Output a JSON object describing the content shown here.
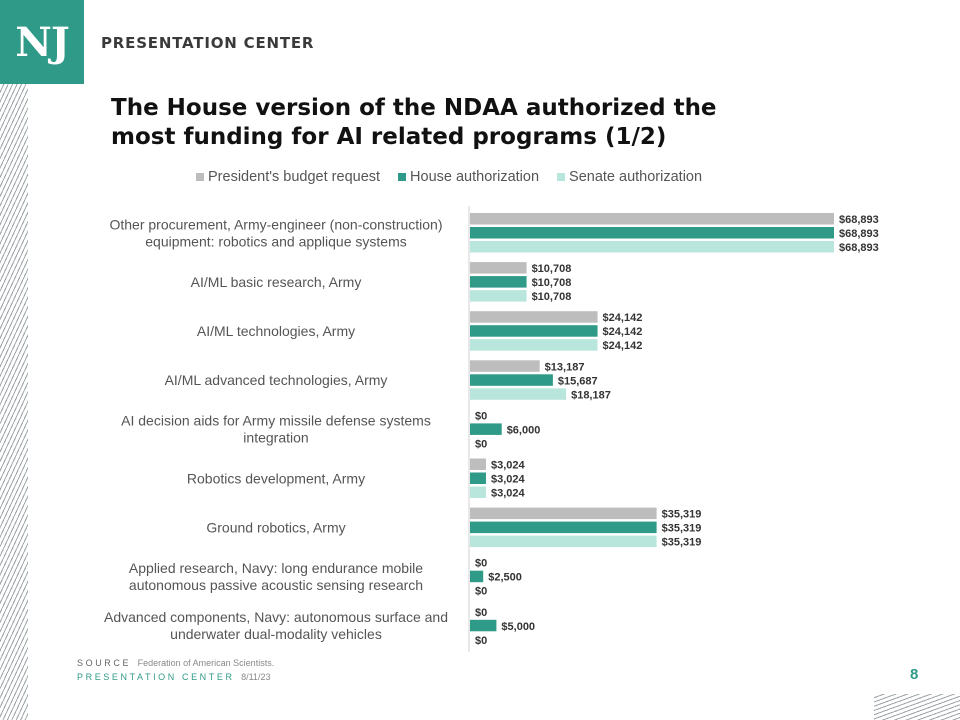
{
  "header": {
    "logo_text": "NJ",
    "brand": "PRESENTATION CENTER"
  },
  "title_line1": "The House version of the NDAA authorized the",
  "title_line2": "most funding for AI related programs (1/2)",
  "colors": {
    "accent": "#2f9a88",
    "president": "#bdbdbd",
    "house": "#2f9a88",
    "senate": "#b9e6dc"
  },
  "chart_data": {
    "type": "bar",
    "orientation": "horizontal",
    "title": "",
    "xlabel": "",
    "ylabel": "",
    "legend_position": "top",
    "grid": false,
    "xlim": [
      0,
      68893
    ],
    "categories": [
      [
        "Other procurement, Army-engineer (non-construction)",
        "equipment: robotics and applique systems"
      ],
      [
        "AI/ML basic research, Army"
      ],
      [
        "AI/ML technologies, Army"
      ],
      [
        "AI/ML advanced technologies, Army"
      ],
      [
        "AI decision aids for Army missile defense systems",
        "integration"
      ],
      [
        "Robotics development, Army"
      ],
      [
        "Ground robotics, Army"
      ],
      [
        "Applied research, Navy: long endurance mobile",
        "autonomous passive acoustic sensing research"
      ],
      [
        "Advanced components, Navy: autonomous surface and",
        "underwater dual-modality vehicles"
      ]
    ],
    "series": [
      {
        "name": "President's budget request",
        "color": "#bdbdbd",
        "values": [
          68893,
          10708,
          24142,
          13187,
          0,
          3024,
          35319,
          0,
          0
        ],
        "labels": [
          "$68,893",
          "$10,708",
          "$24,142",
          "$13,187",
          "$0",
          "$3,024",
          "$35,319",
          "$0",
          "$0"
        ]
      },
      {
        "name": "House authorization",
        "color": "#2f9a88",
        "values": [
          68893,
          10708,
          24142,
          15687,
          6000,
          3024,
          35319,
          2500,
          5000
        ],
        "labels": [
          "$68,893",
          "$10,708",
          "$24,142",
          "$15,687",
          "$6,000",
          "$3,024",
          "$35,319",
          "$2,500",
          "$5,000"
        ]
      },
      {
        "name": "Senate authorization",
        "color": "#b9e6dc",
        "values": [
          68893,
          10708,
          24142,
          18187,
          0,
          3024,
          35319,
          0,
          0
        ],
        "labels": [
          "$68,893",
          "$10,708",
          "$24,142",
          "$18,187",
          "$0",
          "$3,024",
          "$35,319",
          "$0",
          "$0"
        ]
      }
    ]
  },
  "footer": {
    "source_key": "SOURCE",
    "source_text": "Federation of American Scientists.",
    "pc_key": "PRESENTATION CENTER",
    "date": "8/11/23",
    "page": "8"
  }
}
